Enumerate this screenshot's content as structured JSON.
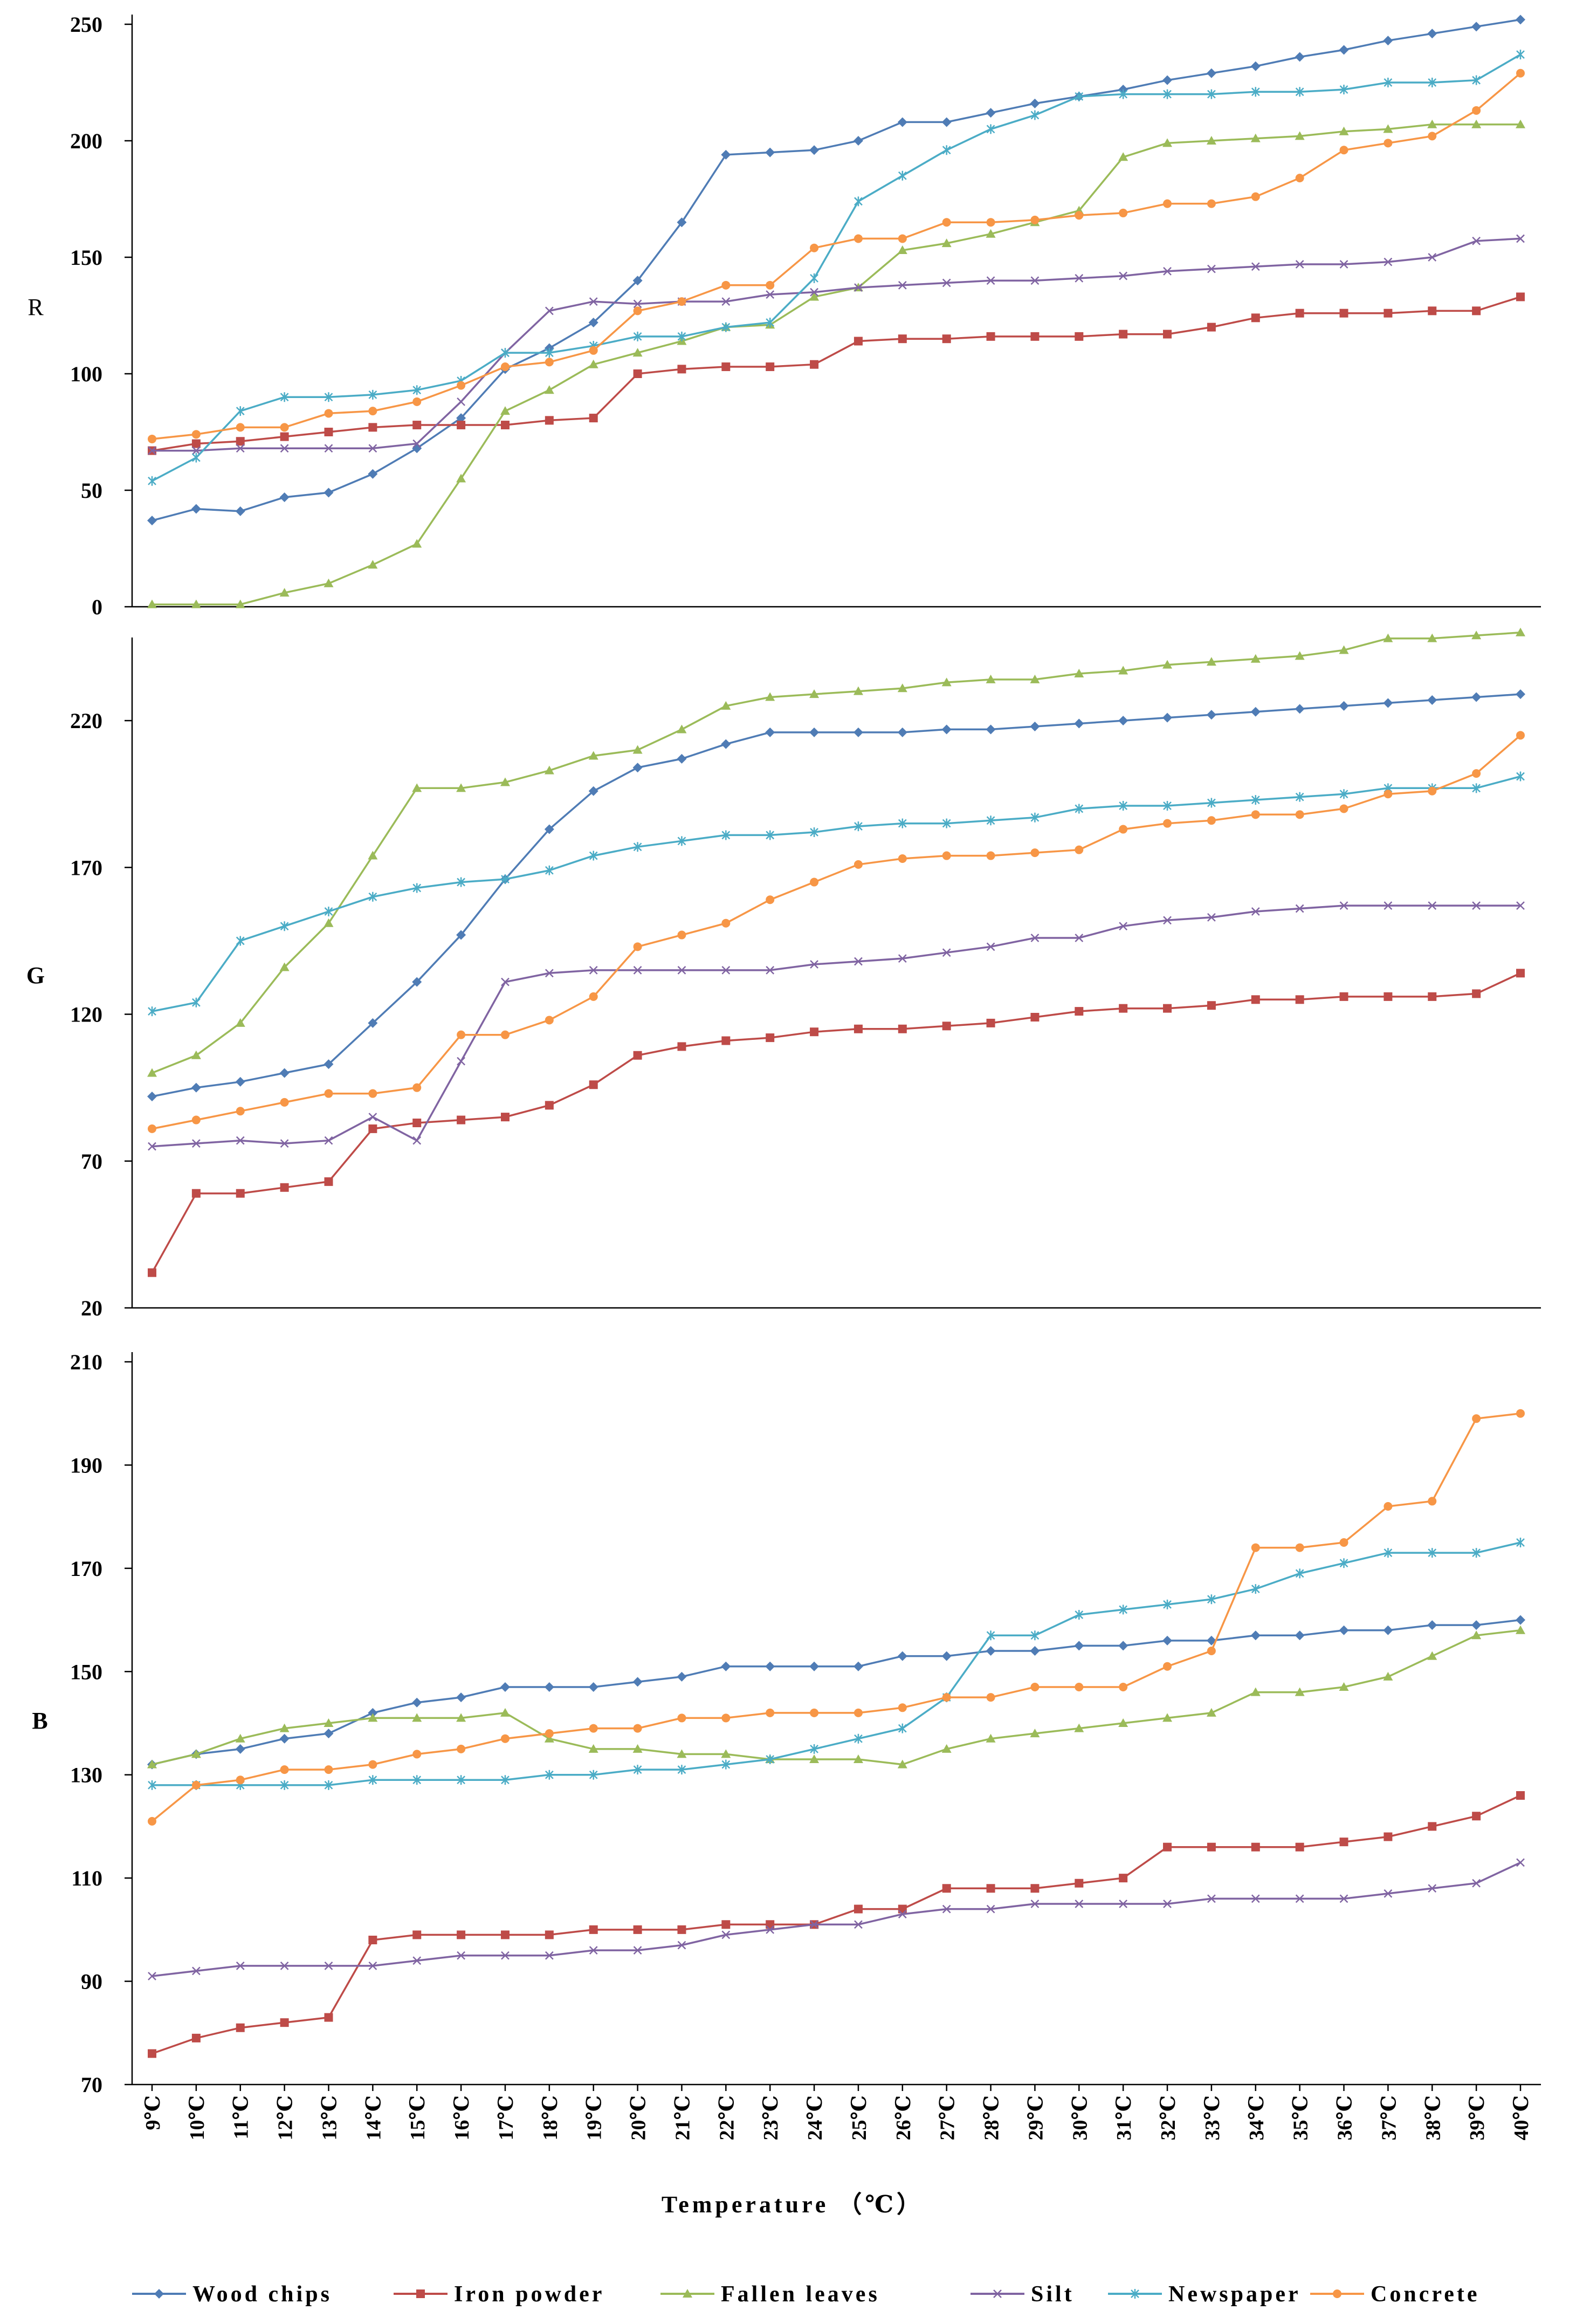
{
  "chart_data": {
    "type": "line",
    "xlabel": "Temperature （℃）",
    "categories": [
      "9℃",
      "10℃",
      "11℃",
      "12℃",
      "13℃",
      "14℃",
      "15℃",
      "16℃",
      "17℃",
      "18℃",
      "19℃",
      "20℃",
      "21℃",
      "22℃",
      "23℃",
      "24℃",
      "25℃",
      "26℃",
      "27℃",
      "28℃",
      "29℃",
      "30℃",
      "31℃",
      "32℃",
      "33℃",
      "34℃",
      "35℃",
      "36℃",
      "37℃",
      "38℃",
      "39℃",
      "40℃"
    ],
    "series_styles": [
      {
        "name": "Wood chips",
        "color": "#4F7CB5",
        "marker": "diamond"
      },
      {
        "name": "Iron powder",
        "color": "#BE4B48",
        "marker": "square"
      },
      {
        "name": "Fallen leaves",
        "color": "#9BBB59",
        "marker": "triangle"
      },
      {
        "name": "Silt",
        "color": "#8064A2",
        "marker": "x"
      },
      {
        "name": "Newspaper",
        "color": "#4BACC6",
        "marker": "star"
      },
      {
        "name": "Concrete",
        "color": "#F79646",
        "marker": "circle"
      }
    ],
    "panels": [
      {
        "ylabel": "R",
        "ylim": [
          0,
          250
        ],
        "yticks": [
          0,
          50,
          100,
          150,
          200,
          250
        ],
        "series": [
          {
            "name": "Wood chips",
            "values": [
              37,
              42,
              41,
              47,
              49,
              57,
              68,
              81,
              102,
              111,
              122,
              140,
              165,
              194,
              195,
              196,
              200,
              208,
              208,
              212,
              216,
              219,
              222,
              226,
              229,
              232,
              236,
              239,
              243,
              246,
              249,
              252
            ]
          },
          {
            "name": "Iron powder",
            "values": [
              67,
              70,
              71,
              73,
              75,
              77,
              78,
              78,
              78,
              80,
              81,
              100,
              102,
              103,
              103,
              104,
              114,
              115,
              115,
              116,
              116,
              116,
              117,
              117,
              120,
              124,
              126,
              126,
              126,
              127,
              127,
              133
            ]
          },
          {
            "name": "Fallen leaves",
            "values": [
              1,
              1,
              1,
              6,
              10,
              18,
              27,
              55,
              84,
              93,
              104,
              109,
              114,
              120,
              121,
              133,
              137,
              153,
              156,
              160,
              165,
              170,
              193,
              199,
              200,
              201,
              202,
              204,
              205,
              207,
              207,
              207
            ]
          },
          {
            "name": "Silt",
            "values": [
              67,
              67,
              68,
              68,
              68,
              68,
              70,
              88,
              109,
              127,
              131,
              130,
              131,
              131,
              134,
              135,
              137,
              138,
              139,
              140,
              140,
              141,
              142,
              144,
              145,
              146,
              147,
              147,
              148,
              150,
              157,
              158
            ]
          },
          {
            "name": "Newspaper",
            "values": [
              54,
              64,
              84,
              90,
              90,
              91,
              93,
              97,
              109,
              109,
              112,
              116,
              116,
              120,
              122,
              141,
              174,
              185,
              196,
              205,
              211,
              219,
              220,
              220,
              220,
              221,
              221,
              222,
              225,
              225,
              226,
              237
            ]
          },
          {
            "name": "Concrete",
            "values": [
              72,
              74,
              77,
              77,
              83,
              84,
              88,
              95,
              103,
              105,
              110,
              127,
              131,
              138,
              138,
              154,
              158,
              158,
              165,
              165,
              166,
              168,
              169,
              173,
              173,
              176,
              184,
              196,
              199,
              202,
              213,
              229
            ]
          }
        ]
      },
      {
        "ylabel": "G",
        "ylim": [
          20,
          245
        ],
        "yticks": [
          20,
          70,
          120,
          170,
          220
        ],
        "series": [
          {
            "name": "Wood chips",
            "values": [
              92,
              95,
              97,
              100,
              103,
              117,
              131,
              147,
              166,
              183,
              196,
              204,
              207,
              212,
              216,
              216,
              216,
              216,
              217,
              217,
              218,
              219,
              220,
              221,
              222,
              223,
              224,
              225,
              226,
              227,
              228,
              229
            ]
          },
          {
            "name": "Iron powder",
            "values": [
              32,
              59,
              59,
              61,
              63,
              81,
              83,
              84,
              85,
              89,
              96,
              106,
              109,
              111,
              112,
              114,
              115,
              115,
              116,
              117,
              119,
              121,
              122,
              122,
              123,
              125,
              125,
              126,
              126,
              126,
              127,
              134
            ]
          },
          {
            "name": "Fallen leaves",
            "values": [
              100,
              106,
              117,
              136,
              151,
              174,
              197,
              197,
              199,
              203,
              208,
              210,
              217,
              225,
              228,
              229,
              230,
              231,
              233,
              234,
              234,
              236,
              237,
              239,
              240,
              241,
              242,
              244,
              248,
              248,
              249,
              250
            ]
          },
          {
            "name": "Silt",
            "values": [
              75,
              76,
              77,
              76,
              77,
              85,
              77,
              104,
              131,
              134,
              135,
              135,
              135,
              135,
              135,
              137,
              138,
              139,
              141,
              143,
              146,
              146,
              150,
              152,
              153,
              155,
              156,
              157,
              157,
              157,
              157,
              157
            ]
          },
          {
            "name": "Newspaper",
            "values": [
              121,
              124,
              145,
              150,
              155,
              160,
              163,
              165,
              166,
              169,
              174,
              177,
              179,
              181,
              181,
              182,
              184,
              185,
              185,
              186,
              187,
              190,
              191,
              191,
              192,
              193,
              194,
              195,
              197,
              197,
              197,
              201
            ]
          },
          {
            "name": "Concrete",
            "values": [
              81,
              84,
              87,
              90,
              93,
              93,
              95,
              113,
              113,
              118,
              126,
              143,
              147,
              151,
              159,
              165,
              171,
              173,
              174,
              174,
              175,
              176,
              183,
              185,
              186,
              188,
              188,
              190,
              195,
              196,
              202,
              215
            ]
          }
        ]
      },
      {
        "ylabel": "B",
        "ylim": [
          70,
          210
        ],
        "yticks": [
          70,
          90,
          110,
          130,
          150,
          170,
          190,
          210
        ],
        "series": [
          {
            "name": "Wood chips",
            "values": [
              132,
              134,
              135,
              137,
              138,
              142,
              144,
              145,
              147,
              147,
              147,
              148,
              149,
              151,
              151,
              151,
              151,
              153,
              153,
              154,
              154,
              155,
              155,
              156,
              156,
              157,
              157,
              158,
              158,
              159,
              159,
              160
            ]
          },
          {
            "name": "Iron powder",
            "values": [
              76,
              79,
              81,
              82,
              83,
              98,
              99,
              99,
              99,
              99,
              100,
              100,
              100,
              101,
              101,
              101,
              104,
              104,
              108,
              108,
              108,
              109,
              110,
              116,
              116,
              116,
              116,
              117,
              118,
              120,
              122,
              126
            ]
          },
          {
            "name": "Fallen leaves",
            "values": [
              132,
              134,
              137,
              139,
              140,
              141,
              141,
              141,
              142,
              137,
              135,
              135,
              134,
              134,
              133,
              133,
              133,
              132,
              135,
              137,
              138,
              139,
              140,
              141,
              142,
              146,
              146,
              147,
              149,
              153,
              157,
              158
            ]
          },
          {
            "name": "Silt",
            "values": [
              91,
              92,
              93,
              93,
              93,
              93,
              94,
              95,
              95,
              95,
              96,
              96,
              97,
              99,
              100,
              101,
              101,
              103,
              104,
              104,
              105,
              105,
              105,
              105,
              106,
              106,
              106,
              106,
              107,
              108,
              109,
              113
            ]
          },
          {
            "name": "Newspaper",
            "values": [
              128,
              128,
              128,
              128,
              128,
              129,
              129,
              129,
              129,
              130,
              130,
              131,
              131,
              132,
              133,
              135,
              137,
              139,
              145,
              157,
              157,
              161,
              162,
              163,
              164,
              166,
              169,
              171,
              173,
              173,
              173,
              175
            ]
          },
          {
            "name": "Concrete",
            "values": [
              121,
              128,
              129,
              131,
              131,
              132,
              134,
              135,
              137,
              138,
              139,
              139,
              141,
              141,
              142,
              142,
              142,
              143,
              145,
              145,
              147,
              147,
              147,
              151,
              154,
              174,
              174,
              175,
              182,
              183,
              199,
              200
            ]
          }
        ]
      }
    ]
  }
}
